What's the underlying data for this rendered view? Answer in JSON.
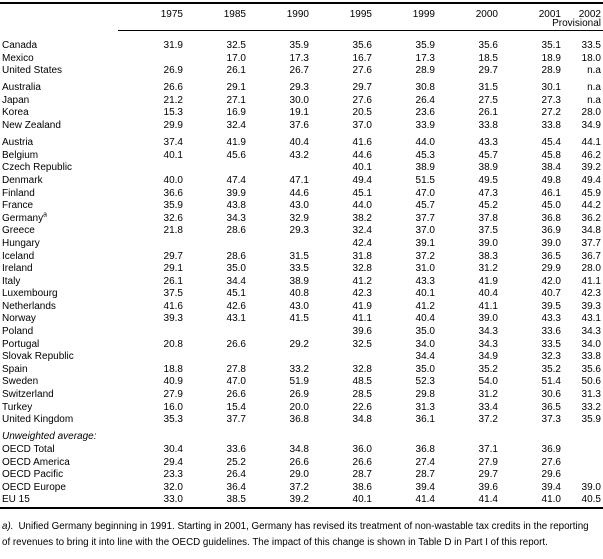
{
  "table": {
    "columns": [
      "1975",
      "1985",
      "1990",
      "1995",
      "1999",
      "2000",
      "2001",
      "2002"
    ],
    "last_column_subline": "Provisional",
    "groups": [
      {
        "rows": [
          {
            "country": "Canada",
            "values": [
              "31.9",
              "32.5",
              "35.9",
              "35.6",
              "35.9",
              "35.6",
              "35.1",
              "33.5"
            ]
          },
          {
            "country": "Mexico",
            "values": [
              "",
              "17.0",
              "17.3",
              "16.7",
              "17.3",
              "18.5",
              "18.9",
              "18.0"
            ]
          },
          {
            "country": "United States",
            "values": [
              "26.9",
              "26.1",
              "26.7",
              "27.6",
              "28.9",
              "29.7",
              "28.9",
              "n.a"
            ]
          }
        ]
      },
      {
        "rows": [
          {
            "country": "Australia",
            "values": [
              "26.6",
              "29.1",
              "29.3",
              "29.7",
              "30.8",
              "31.5",
              "30.1",
              "n.a"
            ]
          },
          {
            "country": "Japan",
            "values": [
              "21.2",
              "27.1",
              "30.0",
              "27.6",
              "26.4",
              "27.5",
              "27.3",
              "n.a"
            ]
          },
          {
            "country": "Korea",
            "values": [
              "15.3",
              "16.9",
              "19.1",
              "20.5",
              "23.6",
              "26.1",
              "27.2",
              "28.0"
            ]
          },
          {
            "country": "New Zealand",
            "values": [
              "29.9",
              "32.4",
              "37.6",
              "37.0",
              "33.9",
              "33.8",
              "33.8",
              "34.9"
            ]
          }
        ]
      },
      {
        "rows": [
          {
            "country": "Austria",
            "values": [
              "37.4",
              "41.9",
              "40.4",
              "41.6",
              "44.0",
              "43.3",
              "45.4",
              "44.1"
            ]
          },
          {
            "country": "Belgium",
            "values": [
              "40.1",
              "45.6",
              "43.2",
              "44.6",
              "45.3",
              "45.7",
              "45.8",
              "46.2"
            ]
          },
          {
            "country": "Czech Republic",
            "values": [
              "",
              "",
              "",
              "40.1",
              "38.9",
              "38.9",
              "38.4",
              "39.2"
            ]
          },
          {
            "country": "Denmark",
            "values": [
              "40.0",
              "47.4",
              "47.1",
              "49.4",
              "51.5",
              "49.5",
              "49.8",
              "49.4"
            ]
          },
          {
            "country": "Finland",
            "values": [
              "36.6",
              "39.9",
              "44.6",
              "45.1",
              "47.0",
              "47.3",
              "46.1",
              "45.9"
            ]
          },
          {
            "country": "France",
            "values": [
              "35.9",
              "43.8",
              "43.0",
              "44.0",
              "45.7",
              "45.2",
              "45.0",
              "44.2"
            ]
          },
          {
            "country": "Germany",
            "sup": "a",
            "values": [
              "32.6",
              "34.3",
              "32.9",
              "38.2",
              "37.7",
              "37.8",
              "36.8",
              "36.2"
            ]
          },
          {
            "country": "Greece",
            "values": [
              "21.8",
              "28.6",
              "29.3",
              "32.4",
              "37.0",
              "37.5",
              "36.9",
              "34.8"
            ]
          },
          {
            "country": "Hungary",
            "values": [
              "",
              "",
              "",
              "42.4",
              "39.1",
              "39.0",
              "39.0",
              "37.7"
            ]
          },
          {
            "country": "Iceland",
            "values": [
              "29.7",
              "28.6",
              "31.5",
              "31.8",
              "37.2",
              "38.3",
              "36.5",
              "36.7"
            ]
          },
          {
            "country": "Ireland",
            "values": [
              "29.1",
              "35.0",
              "33.5",
              "32.8",
              "31.0",
              "31.2",
              "29.9",
              "28.0"
            ]
          },
          {
            "country": "Italy",
            "values": [
              "26.1",
              "34.4",
              "38.9",
              "41.2",
              "43.3",
              "41.9",
              "42.0",
              "41.1"
            ]
          },
          {
            "country": "Luxembourg",
            "values": [
              "37.5",
              "45.1",
              "40.8",
              "42.3",
              "40.1",
              "40.4",
              "40.7",
              "42.3"
            ]
          },
          {
            "country": "Netherlands",
            "values": [
              "41.6",
              "42.6",
              "43.0",
              "41.9",
              "41.2",
              "41.1",
              "39.5",
              "39.3"
            ]
          },
          {
            "country": "Norway",
            "values": [
              "39.3",
              "43.1",
              "41.5",
              "41.1",
              "40.4",
              "39.0",
              "43.3",
              "43.1"
            ]
          },
          {
            "country": "Poland",
            "values": [
              "",
              "",
              "",
              "39.6",
              "35.0",
              "34.3",
              "33.6",
              "34.3"
            ]
          },
          {
            "country": "Portugal",
            "values": [
              "20.8",
              "26.6",
              "29.2",
              "32.5",
              "34.0",
              "34.3",
              "33.5",
              "34.0"
            ]
          },
          {
            "country": "Slovak Republic",
            "values": [
              "",
              "",
              "",
              "",
              "34.4",
              "34.9",
              "32.3",
              "33.8"
            ]
          },
          {
            "country": "Spain",
            "values": [
              "18.8",
              "27.8",
              "33.2",
              "32.8",
              "35.0",
              "35.2",
              "35.2",
              "35.6"
            ]
          },
          {
            "country": "Sweden",
            "values": [
              "40.9",
              "47.0",
              "51.9",
              "48.5",
              "52.3",
              "54.0",
              "51.4",
              "50.6"
            ]
          },
          {
            "country": "Switzerland",
            "values": [
              "27.9",
              "26.6",
              "26.9",
              "28.5",
              "29.8",
              "31.2",
              "30.6",
              "31.3"
            ]
          },
          {
            "country": "Turkey",
            "values": [
              "16.0",
              "15.4",
              "20.0",
              "22.6",
              "31.3",
              "33.4",
              "36.5",
              "33.2"
            ]
          },
          {
            "country": "United Kingdom",
            "values": [
              "35.3",
              "37.7",
              "36.8",
              "34.8",
              "36.1",
              "37.2",
              "37.3",
              "35.9"
            ]
          }
        ]
      },
      {
        "label": "Unweighted average:",
        "rows": [
          {
            "country": "OECD Total",
            "values": [
              "30.4",
              "33.6",
              "34.8",
              "36.0",
              "36.8",
              "37.1",
              "36.9",
              ""
            ]
          },
          {
            "country": "OECD America",
            "values": [
              "29.4",
              "25.2",
              "26.6",
              "26.6",
              "27.4",
              "27.9",
              "27.6",
              ""
            ]
          },
          {
            "country": "OECD Pacific",
            "values": [
              "23.3",
              "26.4",
              "29.0",
              "28.7",
              "28.7",
              "29.7",
              "29.6",
              ""
            ]
          },
          {
            "country": "OECD Europe",
            "values": [
              "32.0",
              "36.4",
              "37.2",
              "38.6",
              "39.4",
              "39.6",
              "39.4",
              "39.0"
            ]
          },
          {
            "country": "EU 15",
            "values": [
              "33.0",
              "38.5",
              "39.2",
              "40.1",
              "41.4",
              "41.4",
              "41.0",
              "40.5"
            ]
          }
        ]
      }
    ]
  },
  "footnote": {
    "marker": "a).",
    "line1": "Unified Germany beginning in 1991. Starting in 2001, Germany has revised its treatment of non-wastable tax credits in the reporting",
    "line2": "of revenues to bring it into line with the OECD guidelines. The impact of this change is shown in Table D in Part I of this report."
  }
}
